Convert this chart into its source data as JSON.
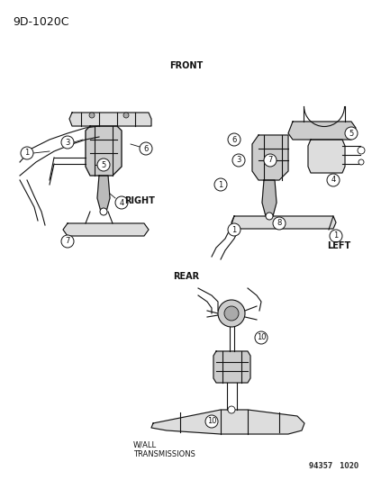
{
  "title": "9D-1020C",
  "fig_width": 4.14,
  "fig_height": 5.33,
  "dpi": 100,
  "bg_color": "#ffffff",
  "text_color": "#000000",
  "label_front": "FRONT",
  "label_right": "RIGHT",
  "label_left": "LEFT",
  "label_rear": "REAR",
  "label_wtrans": "W/ALL\nTRANSMISSIONS",
  "label_partnum": "94357   1020",
  "diagram_id": "9D-1020C"
}
